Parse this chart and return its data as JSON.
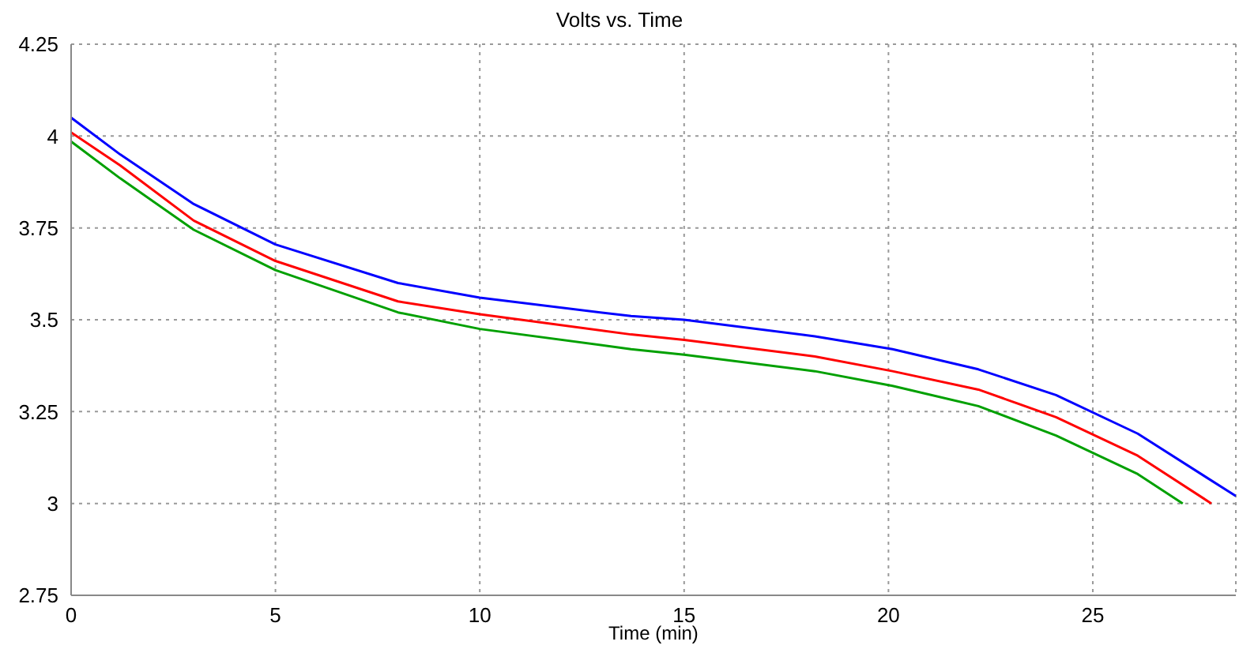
{
  "chart_data": {
    "type": "line",
    "title": "Volts vs. Time",
    "xlabel": "Time (min)",
    "xlim": [
      0,
      28.5
    ],
    "xticks": [
      0,
      5,
      10,
      15,
      20,
      25
    ],
    "ylim": [
      2.75,
      4.25
    ],
    "yticks": [
      2.75,
      3,
      3.25,
      3.5,
      3.75,
      4,
      4.25
    ],
    "grid": true,
    "marker": "none",
    "line_style": "solid",
    "series": [
      {
        "color": "#0000ff",
        "x": [
          0,
          1.2,
          3,
          5,
          8,
          10,
          13.7,
          15,
          18.2,
          20.1,
          22.2,
          24.1,
          26.1,
          28.5
        ],
        "values": [
          4.05,
          3.95,
          3.815,
          3.705,
          3.6,
          3.56,
          3.51,
          3.5,
          3.455,
          3.42,
          3.365,
          3.295,
          3.19,
          3.02
        ]
      },
      {
        "color": "#ff0000",
        "x": [
          0,
          1.2,
          3,
          5,
          8,
          10,
          13.7,
          15,
          18.2,
          20.1,
          22.2,
          24.1,
          26.1,
          27.9
        ],
        "values": [
          4.01,
          3.92,
          3.77,
          3.66,
          3.55,
          3.515,
          3.46,
          3.445,
          3.4,
          3.36,
          3.31,
          3.235,
          3.13,
          3
        ]
      },
      {
        "color": "#00a000",
        "x": [
          0,
          1.2,
          3,
          5,
          8,
          10,
          13.7,
          15,
          18.2,
          20.1,
          22.2,
          24.1,
          26.1,
          27.2
        ],
        "values": [
          3.985,
          3.885,
          3.745,
          3.635,
          3.52,
          3.475,
          3.42,
          3.405,
          3.36,
          3.32,
          3.265,
          3.185,
          3.08,
          3
        ]
      }
    ]
  }
}
